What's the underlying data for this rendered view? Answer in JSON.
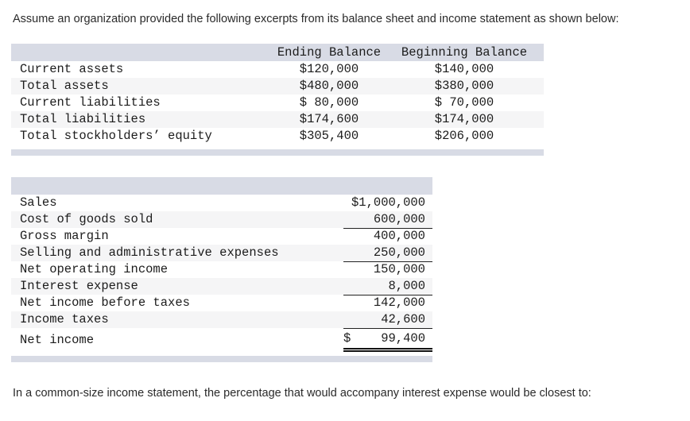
{
  "intro": "Assume an organization provided the following excerpts from its balance sheet and income statement as shown below:",
  "balance_sheet": {
    "headers": {
      "ending": "Ending Balance",
      "beginning": "Beginning Balance"
    },
    "rows": [
      {
        "label": "Current assets",
        "ending": "$120,000",
        "beginning": "$140,000"
      },
      {
        "label": "Total assets",
        "ending": "$480,000",
        "beginning": "$380,000"
      },
      {
        "label": "Current liabilities",
        "ending": "$ 80,000",
        "beginning": "$ 70,000"
      },
      {
        "label": "Total liabilities",
        "ending": "$174,600",
        "beginning": "$174,000"
      },
      {
        "label": "Total stockholders’ equity",
        "ending": "$305,400",
        "beginning": "$206,000"
      }
    ]
  },
  "income_statement": {
    "rows": [
      {
        "label": "Sales",
        "amount": "$1,000,000"
      },
      {
        "label": "Cost of goods sold",
        "amount": "600,000"
      },
      {
        "label": "Gross margin",
        "amount": "400,000"
      },
      {
        "label": "Selling and administrative expenses",
        "amount": "250,000"
      },
      {
        "label": "Net operating income",
        "amount": "150,000"
      },
      {
        "label": "Interest expense",
        "amount": "8,000"
      },
      {
        "label": "Net income before taxes",
        "amount": "142,000"
      },
      {
        "label": "Income taxes",
        "amount": "42,600"
      },
      {
        "label": "Net income",
        "currency": "$",
        "amount": "99,400"
      }
    ]
  },
  "question": "In a common-size income statement, the percentage that would accompany interest expense would be closest to:",
  "colors": {
    "band": "#d8dbe5",
    "alt_row": "#f5f5f6",
    "rule": "#222222"
  }
}
